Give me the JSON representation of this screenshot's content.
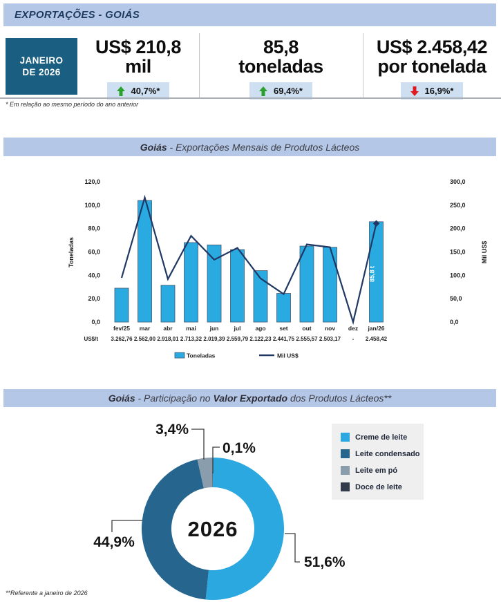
{
  "page_title": "EXPORTAÇÕES - GOIÁS",
  "footnotes": {
    "kpi": "* Em relação ao mesmo período do ano anterior",
    "share": "**Referente a janeiro de 2026"
  },
  "kpi": {
    "period": {
      "line1": "JANEIRO",
      "line2": "DE 2026"
    },
    "cards": [
      {
        "value_line1": "US$ 210,8",
        "value_line2": "mil",
        "delta": "40,7%*",
        "direction": "up"
      },
      {
        "value_line1": "85,8",
        "value_line2": "toneladas",
        "delta": "69,4%*",
        "direction": "up"
      },
      {
        "value_line1": "US$ 2.458,42",
        "value_line2": "por tonelada",
        "delta": "16,9%*",
        "direction": "down"
      }
    ]
  },
  "titles": {
    "chart1": {
      "lead": "Goiás",
      "rest": " - Exportações Mensais de Produtos Lácteos"
    },
    "chart2": {
      "lead": "Goiás",
      "mid": " - Participação no ",
      "strong": "Valor Exportado",
      "tail": " dos Produtos Lácteos**"
    }
  },
  "colors": {
    "band_bg": "#B4C7E7",
    "period_box_bg": "#1A5F82",
    "badge_bg": "#CEDFF2",
    "up_green": "#2BA02F",
    "down_red": "#DF1B21",
    "bar_fill": "#29ABE2",
    "bar_stroke": "#44546A",
    "line_color": "#1F3864",
    "leader_line": "#3A3A3A"
  },
  "chart_data": [
    {
      "type": "bar",
      "title": "Goiás - Exportações Mensais de Produtos Lácteos",
      "categories": [
        "fev/25",
        "mar",
        "abr",
        "mai",
        "jun",
        "jul",
        "ago",
        "set",
        "out",
        "nov",
        "dez",
        "jan/26"
      ],
      "series": [
        {
          "name": "Toneladas",
          "type": "bar",
          "axis": "left",
          "values": [
            29,
            104,
            31.5,
            68,
            66,
            62,
            44,
            24.5,
            65,
            64,
            0,
            85.8
          ]
        },
        {
          "name": "Mil US$",
          "type": "line",
          "axis": "right",
          "values": [
            94.6,
            266.4,
            91.9,
            184.5,
            133.3,
            158.7,
            93.4,
            59.8,
            166.1,
            160.2,
            0,
            210.8
          ]
        }
      ],
      "left_axis": {
        "label": "Toneladas",
        "min": 0,
        "max": 120,
        "step": 20
      },
      "right_axis": {
        "label": "Mil US$",
        "min": 0,
        "max": 300,
        "step": 50
      },
      "grid": false,
      "legend_position": "bottom",
      "bar_label": {
        "category": "jan/26",
        "text": "85,8 t"
      },
      "usd_per_ton_row": {
        "label": "US$/t",
        "values": [
          "3.262,76",
          "2.562,00",
          "2.918,01",
          "2.713,32",
          "2.019,39",
          "2.559,79",
          "2.122,23",
          "2.441,75",
          "2.555,57",
          "2.503,17",
          "-",
          "2.458,42"
        ]
      },
      "legend": [
        "Toneladas",
        "Mil US$"
      ]
    },
    {
      "type": "pie",
      "title": "Goiás - Participação no Valor Exportado dos Produtos Lácteos**",
      "center_label": "2026",
      "slices": [
        {
          "label": "Creme de leite",
          "value": 51.6,
          "display": "51,6%",
          "color": "#2CA8E0"
        },
        {
          "label": "Leite condensado",
          "value": 44.9,
          "display": "44,9%",
          "color": "#25658E"
        },
        {
          "label": "Leite em pó",
          "value": 3.4,
          "display": "3,4%",
          "color": "#8A9DAD"
        },
        {
          "label": "Doce de leite",
          "value": 0.1,
          "display": "0,1%",
          "color": "#323B4C"
        }
      ],
      "legend_position": "right"
    }
  ]
}
